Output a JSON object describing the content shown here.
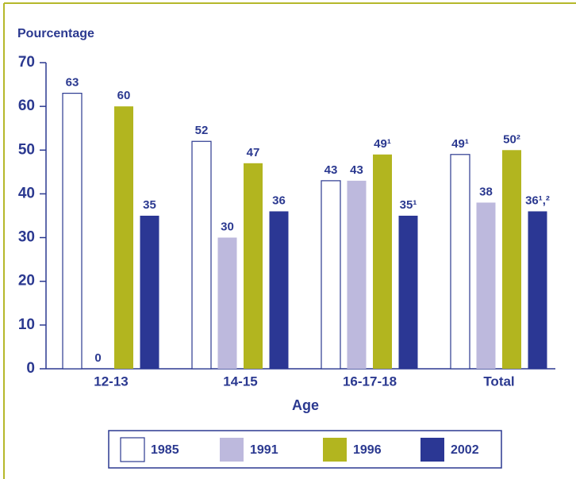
{
  "chart_data": {
    "type": "bar",
    "y_label": "Pourcentage",
    "x_label": "Age",
    "categories": [
      "12-13",
      "14-15",
      "16-17-18",
      "Total"
    ],
    "series": [
      {
        "name": "1985",
        "color": "#ffffff",
        "values": [
          63,
          52,
          43,
          49
        ],
        "value_labels": [
          "63",
          "52",
          "43",
          "49¹"
        ]
      },
      {
        "name": "1991",
        "color": "#bdb9dd",
        "values": [
          0,
          30,
          43,
          38
        ]
      },
      {
        "name": "1996",
        "color": "#b2b51f",
        "values": [
          60,
          47,
          49,
          50
        ],
        "value_labels": [
          "60",
          "47",
          "49¹",
          "50²"
        ]
      },
      {
        "name": "2002",
        "color": "#2b3794",
        "values": [
          35,
          36,
          35,
          36
        ],
        "value_labels": [
          "35",
          "36",
          "35¹",
          "36¹,²"
        ]
      }
    ],
    "ylim": [
      0,
      70
    ],
    "yticks": [
      0,
      10,
      20,
      30,
      40,
      50,
      60,
      70
    ]
  }
}
